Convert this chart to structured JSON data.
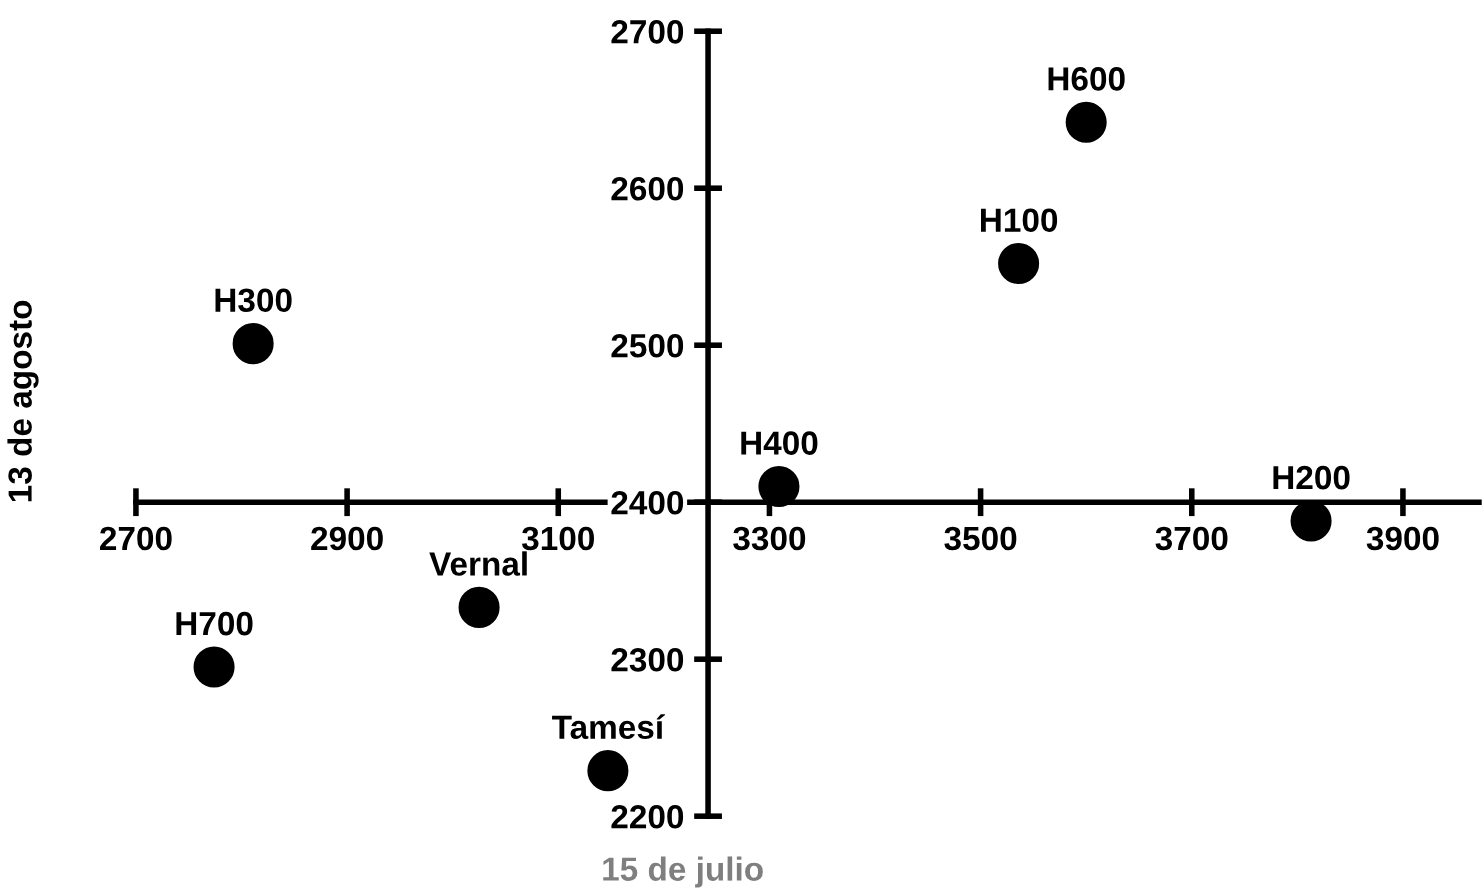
{
  "chart_data": {
    "type": "scatter",
    "xlabel": "15 de julio",
    "ylabel": "13 de agosto",
    "x": [
      3600,
      3536,
      2811,
      3309,
      3813,
      3025,
      2774,
      3147
    ],
    "series": [
      {
        "color": "#000000",
        "values": [
          2642,
          2552,
          2501,
          2410,
          2388,
          2333,
          2295,
          2229
        ]
      }
    ],
    "annotations": [
      {
        "text": "H600",
        "x": 3600,
        "y": 2642
      },
      {
        "text": "H100",
        "x": 3536,
        "y": 2552
      },
      {
        "text": "H300",
        "x": 2811,
        "y": 2501
      },
      {
        "text": "H400",
        "x": 3309,
        "y": 2410
      },
      {
        "text": "H200",
        "x": 3813,
        "y": 2388
      },
      {
        "text": "Vernal",
        "x": 3025,
        "y": 2333
      },
      {
        "text": "H700",
        "x": 2774,
        "y": 2295
      },
      {
        "text": "Tamesí",
        "x": 3147,
        "y": 2229
      }
    ],
    "xlim": [
      2700,
      3972
    ],
    "ylim": [
      2200,
      2700
    ],
    "xticks": [
      2700,
      2900,
      3100,
      3300,
      3500,
      3700,
      3900
    ],
    "yticks": [
      2200,
      2300,
      2400,
      2500,
      2600,
      2700
    ],
    "marker": "circle",
    "grid": false,
    "legend": false
  }
}
